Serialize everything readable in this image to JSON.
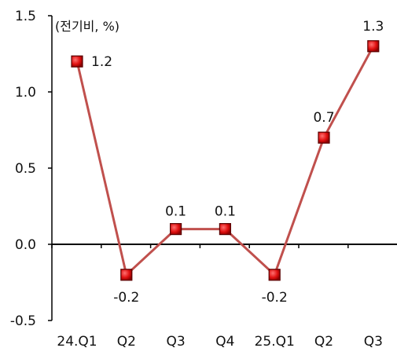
{
  "chart_data": {
    "type": "line",
    "unit_label": "(전기비, %)",
    "categories": [
      "24.Q1",
      "Q2",
      "Q3",
      "Q4",
      "25.Q1",
      "Q2",
      "Q3"
    ],
    "series": [
      {
        "values": [
          1.2,
          -0.2,
          0.1,
          0.1,
          -0.2,
          0.7,
          1.3
        ]
      }
    ],
    "data_labels": [
      "1.2",
      "-0.2",
      "0.1",
      "0.1",
      "-0.2",
      "0.7",
      "1.3"
    ],
    "y_ticks": [
      "1.5",
      "1.0",
      "0.5",
      "0.0",
      "-0.5"
    ],
    "ylim": [
      -0.5,
      1.5
    ],
    "grid": false,
    "legend": "none",
    "colors": {
      "line": "#c0504d",
      "marker": "#e01010",
      "marker_edge": "#5a0000"
    }
  }
}
